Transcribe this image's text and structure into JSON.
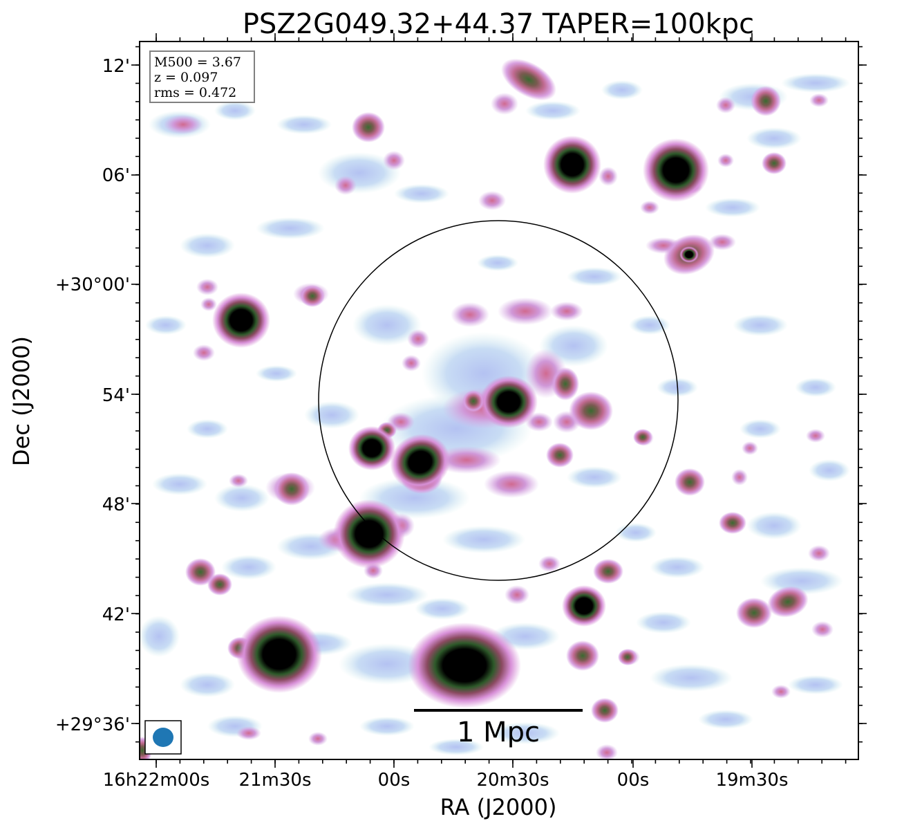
{
  "chart_data": {
    "type": "heatmap",
    "title": "PSZ2G049.32+44.37 TAPER=100kpc",
    "xlabel": "RA (J2000)",
    "ylabel": "Dec (J2000)",
    "x_ticks": [
      "16h22m00s",
      "21m30s",
      "00s",
      "20m30s",
      "00s",
      "19m30s"
    ],
    "y_ticks": [
      "12'",
      "06'",
      "+30°00'",
      "54'",
      "48'",
      "42'",
      "+29°36'"
    ],
    "info_box": [
      "M500 = 3.67",
      "z = 0.097",
      "rms = 0.472"
    ],
    "scale_bar_label": "1 Mpc",
    "colors": {
      "faint": "#b8c8f0",
      "mid": "#c888d0",
      "bright": "#3a6a30",
      "core": "#000000",
      "beam": "#1f77b4",
      "info_border": "#808080"
    }
  }
}
